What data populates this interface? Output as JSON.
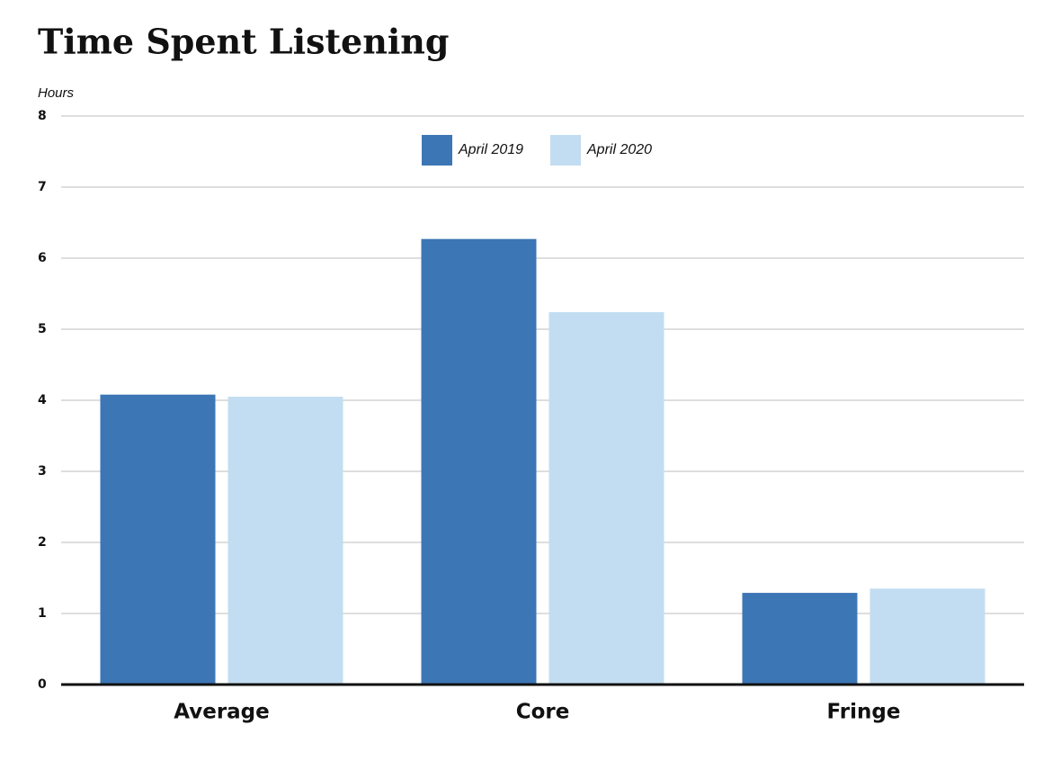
{
  "chart_data": {
    "type": "bar",
    "title": "Time Spent Listening",
    "y_label": "Hours",
    "categories": [
      "Average",
      "Core",
      "Fringe"
    ],
    "series": [
      {
        "name": "April 2019",
        "color": "#3d76b5",
        "values": [
          4.08,
          6.27,
          1.29
        ]
      },
      {
        "name": "April 2020",
        "color": "#c2ddf1",
        "values": [
          4.05,
          5.24,
          1.35
        ]
      }
    ],
    "ylim": [
      0,
      8
    ],
    "yticks": [
      0,
      1,
      2,
      3,
      4,
      5,
      6,
      7,
      8
    ],
    "grid": true,
    "legend": "top"
  }
}
